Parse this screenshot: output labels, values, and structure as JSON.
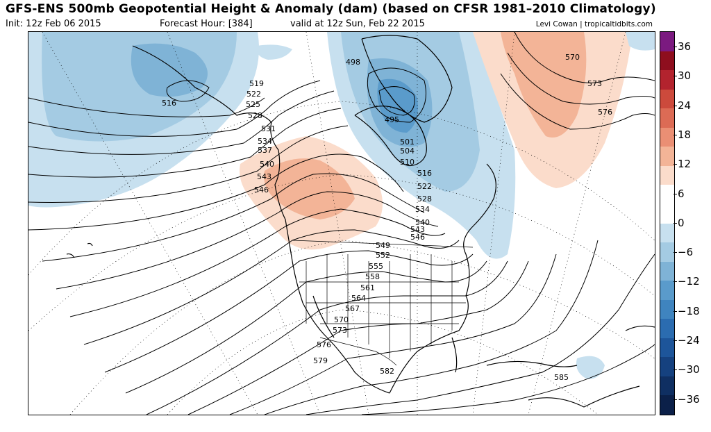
{
  "header": {
    "title": "GFS-ENS 500mb Geopotential Height & Anomaly (dam) (based on CFSR 1981–2010 Climatology)",
    "init": "Init: 12z Feb 06 2015",
    "forecast_hour": "Forecast Hour: [384]",
    "valid": "valid at 12z Sun, Feb 22 2015",
    "credit": "Levi Cowan | tropicaltidbits.com"
  },
  "colorbar": {
    "labels": [
      "36",
      "30",
      "24",
      "18",
      "12",
      "6",
      "0",
      "−6",
      "−12",
      "−18",
      "−24",
      "−30",
      "−36"
    ],
    "colors": [
      "#7b1a80",
      "#8e0e1e",
      "#b3232e",
      "#cc4a3c",
      "#dc6b55",
      "#ea8f74",
      "#f3b497",
      "#fbdccb",
      "#ffffff",
      "#ffffff",
      "#c7e0ef",
      "#a4cbe3",
      "#7fb3d6",
      "#5a9bcb",
      "#3f84bf",
      "#2b6cb0",
      "#1d559a",
      "#15417f",
      "#0f2f62",
      "#0b2049"
    ]
  },
  "contours": {
    "color": "#000000",
    "labels": [
      "519",
      "522",
      "525",
      "528",
      "531",
      "534",
      "537",
      "540",
      "543",
      "546",
      "516",
      "498",
      "495",
      "501",
      "504",
      "510",
      "516",
      "522",
      "528",
      "534",
      "540",
      "543",
      "546",
      "549",
      "552",
      "555",
      "558",
      "561",
      "564",
      "567",
      "570",
      "573",
      "576",
      "579",
      "582",
      "585",
      "570",
      "573",
      "576"
    ]
  },
  "anomaly_colors": {
    "neg_light": "#c7e0ef",
    "neg_mid": "#a4cbe3",
    "neg_dark": "#7fb3d6",
    "neg_deep": "#5a9bcb",
    "pos_light": "#fbdccb",
    "pos_mid": "#f3b497",
    "pos_dark": "#ea8f74"
  }
}
